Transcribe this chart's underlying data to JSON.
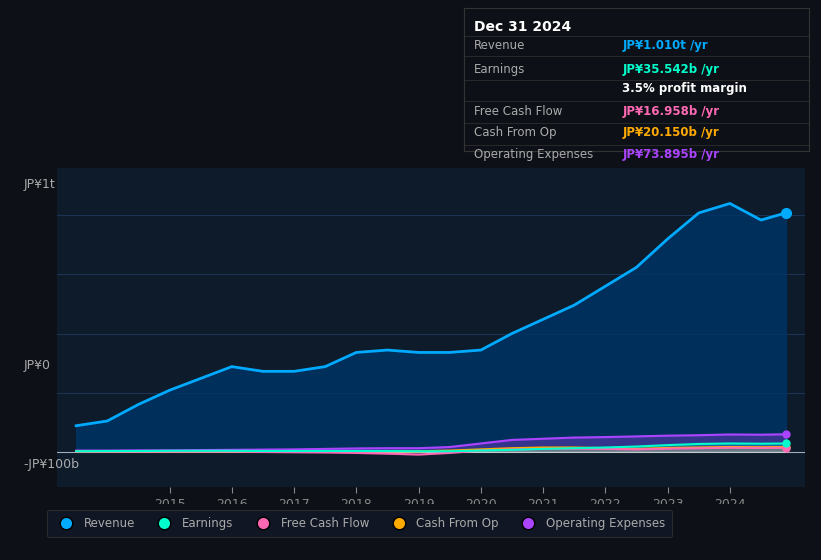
{
  "background_color": "#0d1117",
  "plot_bg_color": "#0d1b2a",
  "title": "Dec 31 2024",
  "ylabel_top": "JP¥1t",
  "ylabel_zero": "JP¥0",
  "ylabel_neg": "-JP¥100b",
  "years": [
    2013.5,
    2014,
    2014.5,
    2015,
    2015.5,
    2016,
    2016.5,
    2017,
    2017.5,
    2018,
    2018.5,
    2019,
    2019.5,
    2020,
    2020.5,
    2021,
    2021.5,
    2022,
    2022.5,
    2023,
    2023.5,
    2024,
    2024.5,
    2024.9
  ],
  "revenue": [
    110,
    130,
    200,
    260,
    310,
    360,
    340,
    340,
    360,
    420,
    430,
    420,
    420,
    430,
    500,
    560,
    620,
    700,
    780,
    900,
    1010,
    1050,
    980,
    1010
  ],
  "earnings": [
    2,
    3,
    3,
    4,
    4,
    4,
    3,
    3,
    3,
    3,
    3,
    2,
    2,
    5,
    8,
    12,
    15,
    18,
    22,
    28,
    33,
    35,
    34,
    35
  ],
  "free_cash_flow": [
    1,
    1,
    1,
    1,
    1,
    1,
    -1,
    -2,
    -3,
    -5,
    -8,
    -12,
    -5,
    5,
    10,
    12,
    13,
    12,
    10,
    13,
    15,
    17,
    16,
    17
  ],
  "cash_from_op": [
    2,
    2,
    2,
    2,
    2,
    2,
    2,
    2,
    2,
    2,
    2,
    2,
    5,
    10,
    15,
    18,
    18,
    15,
    12,
    16,
    18,
    20,
    19,
    20
  ],
  "operating_expenses": [
    5,
    5,
    6,
    6,
    7,
    8,
    9,
    10,
    12,
    14,
    15,
    15,
    20,
    35,
    50,
    55,
    60,
    62,
    65,
    68,
    70,
    73,
    72,
    74
  ],
  "revenue_color": "#00aaff",
  "earnings_color": "#00ffcc",
  "free_cash_flow_color": "#ff69b4",
  "cash_from_op_color": "#ffaa00",
  "operating_expenses_color": "#aa44ff",
  "revenue_fill_color": "#003366",
  "ylim_min": -150,
  "ylim_max": 1200,
  "grid_color": "#1e3a5f",
  "text_color": "#aaaaaa",
  "tick_label_color": "#888888",
  "info_box_bg": "#0d1117",
  "info_box_border": "#333333",
  "legend_items": [
    "Revenue",
    "Earnings",
    "Free Cash Flow",
    "Cash From Op",
    "Operating Expenses"
  ],
  "legend_colors": [
    "#00aaff",
    "#00ffcc",
    "#ff69b4",
    "#ffaa00",
    "#aa44ff"
  ],
  "x_ticks": [
    2015,
    2016,
    2017,
    2018,
    2019,
    2020,
    2021,
    2022,
    2023,
    2024
  ],
  "x_min": 2013.2,
  "x_max": 2025.2
}
